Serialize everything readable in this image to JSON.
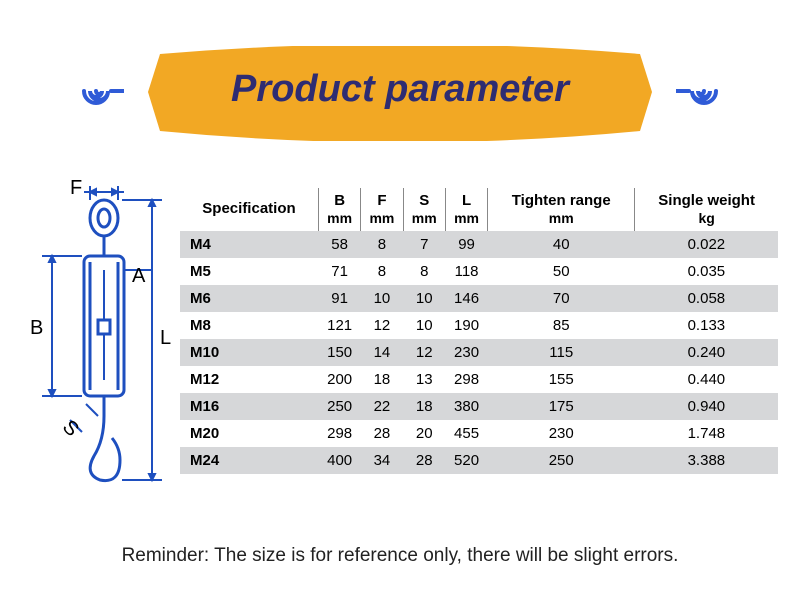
{
  "banner": {
    "title": "Product parameter",
    "color": "#f2a824",
    "text_color": "#2e2c72",
    "spiral_color": "#2f5bd7"
  },
  "diagram": {
    "stroke": "#1e4fbf",
    "labels": [
      "F",
      "A",
      "B",
      "L",
      "S"
    ]
  },
  "table": {
    "columns": [
      {
        "h1": "Specification",
        "h2": ""
      },
      {
        "h1": "B",
        "h2": "mm"
      },
      {
        "h1": "F",
        "h2": "mm"
      },
      {
        "h1": "S",
        "h2": "mm"
      },
      {
        "h1": "L",
        "h2": "mm"
      },
      {
        "h1": "Tighten range",
        "h2": "mm"
      },
      {
        "h1": "Single weight",
        "h2": "kg"
      }
    ],
    "rows": [
      {
        "spec": "M4",
        "b": "58",
        "f": "8",
        "s": "7",
        "l": "99",
        "tr": "40",
        "w": "0.022",
        "shade": true
      },
      {
        "spec": "M5",
        "b": "71",
        "f": "8",
        "s": "8",
        "l": "118",
        "tr": "50",
        "w": "0.035",
        "shade": false
      },
      {
        "spec": "M6",
        "b": "91",
        "f": "10",
        "s": "10",
        "l": "146",
        "tr": "70",
        "w": "0.058",
        "shade": true
      },
      {
        "spec": "M8",
        "b": "121",
        "f": "12",
        "s": "10",
        "l": "190",
        "tr": "85",
        "w": "0.133",
        "shade": false
      },
      {
        "spec": "M10",
        "b": "150",
        "f": "14",
        "s": "12",
        "l": "230",
        "tr": "115",
        "w": "0.240",
        "shade": true
      },
      {
        "spec": "M12",
        "b": "200",
        "f": "18",
        "s": "13",
        "l": "298",
        "tr": "155",
        "w": "0.440",
        "shade": false
      },
      {
        "spec": "M16",
        "b": "250",
        "f": "22",
        "s": "18",
        "l": "380",
        "tr": "175",
        "w": "0.940",
        "shade": true
      },
      {
        "spec": "M20",
        "b": "298",
        "f": "28",
        "s": "20",
        "l": "455",
        "tr": "230",
        "w": "1.748",
        "shade": false
      },
      {
        "spec": "M24",
        "b": "400",
        "f": "34",
        "s": "28",
        "l": "520",
        "tr": "250",
        "w": "3.388",
        "shade": true
      }
    ],
    "header_fontsize": 15,
    "cell_fontsize": 15,
    "shade_color": "#d6d7d9"
  },
  "reminder": "Reminder: The size is for reference only, there will be slight errors."
}
